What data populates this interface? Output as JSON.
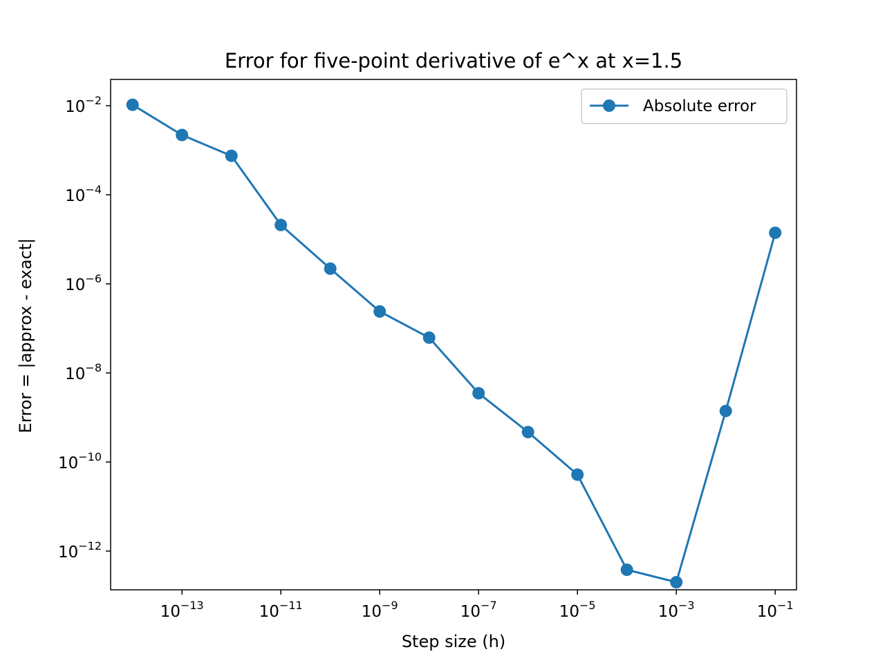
{
  "chart_data": {
    "type": "line",
    "title": "Error for five-point derivative of e^x at x=1.5",
    "xlabel": "Step size (h)",
    "ylabel": "Error = |approx - exact|",
    "xscale": "log",
    "yscale": "log",
    "xlim": [
      3.6e-15,
      0.27
    ],
    "ylim": [
      1.35e-13,
      0.039
    ],
    "grid": false,
    "legend_position": "top-right",
    "x_ticks": [
      {
        "base": "10",
        "exp": "−13",
        "value": 1e-13
      },
      {
        "base": "10",
        "exp": "−11",
        "value": 1e-11
      },
      {
        "base": "10",
        "exp": "−9",
        "value": 1e-09
      },
      {
        "base": "10",
        "exp": "−7",
        "value": 1e-07
      },
      {
        "base": "10",
        "exp": "−5",
        "value": 1e-05
      },
      {
        "base": "10",
        "exp": "−3",
        "value": 0.001
      },
      {
        "base": "10",
        "exp": "−1",
        "value": 0.1
      }
    ],
    "y_ticks": [
      {
        "base": "10",
        "exp": "−2",
        "value": 0.01
      },
      {
        "base": "10",
        "exp": "−4",
        "value": 0.0001
      },
      {
        "base": "10",
        "exp": "−6",
        "value": 1e-06
      },
      {
        "base": "10",
        "exp": "−8",
        "value": 1e-08
      },
      {
        "base": "10",
        "exp": "−10",
        "value": 1e-10
      },
      {
        "base": "10",
        "exp": "−12",
        "value": 1e-12
      }
    ],
    "x": [
      1e-14,
      1e-13,
      1e-12,
      1e-11,
      1e-10,
      1e-09,
      1e-08,
      1e-07,
      1e-06,
      1e-05,
      0.0001,
      0.001,
      0.01,
      0.1
    ],
    "series": [
      {
        "name": "Absolute error",
        "color": "#1f77b4",
        "marker": "circle",
        "values": [
          0.0105,
          0.0022,
          0.00075,
          2.1e-05,
          2.2e-06,
          2.4e-07,
          6.2e-08,
          3.5e-09,
          4.7e-10,
          5.2e-11,
          3.8e-13,
          2e-13,
          1.4e-09,
          1.4e-05
        ]
      }
    ]
  }
}
